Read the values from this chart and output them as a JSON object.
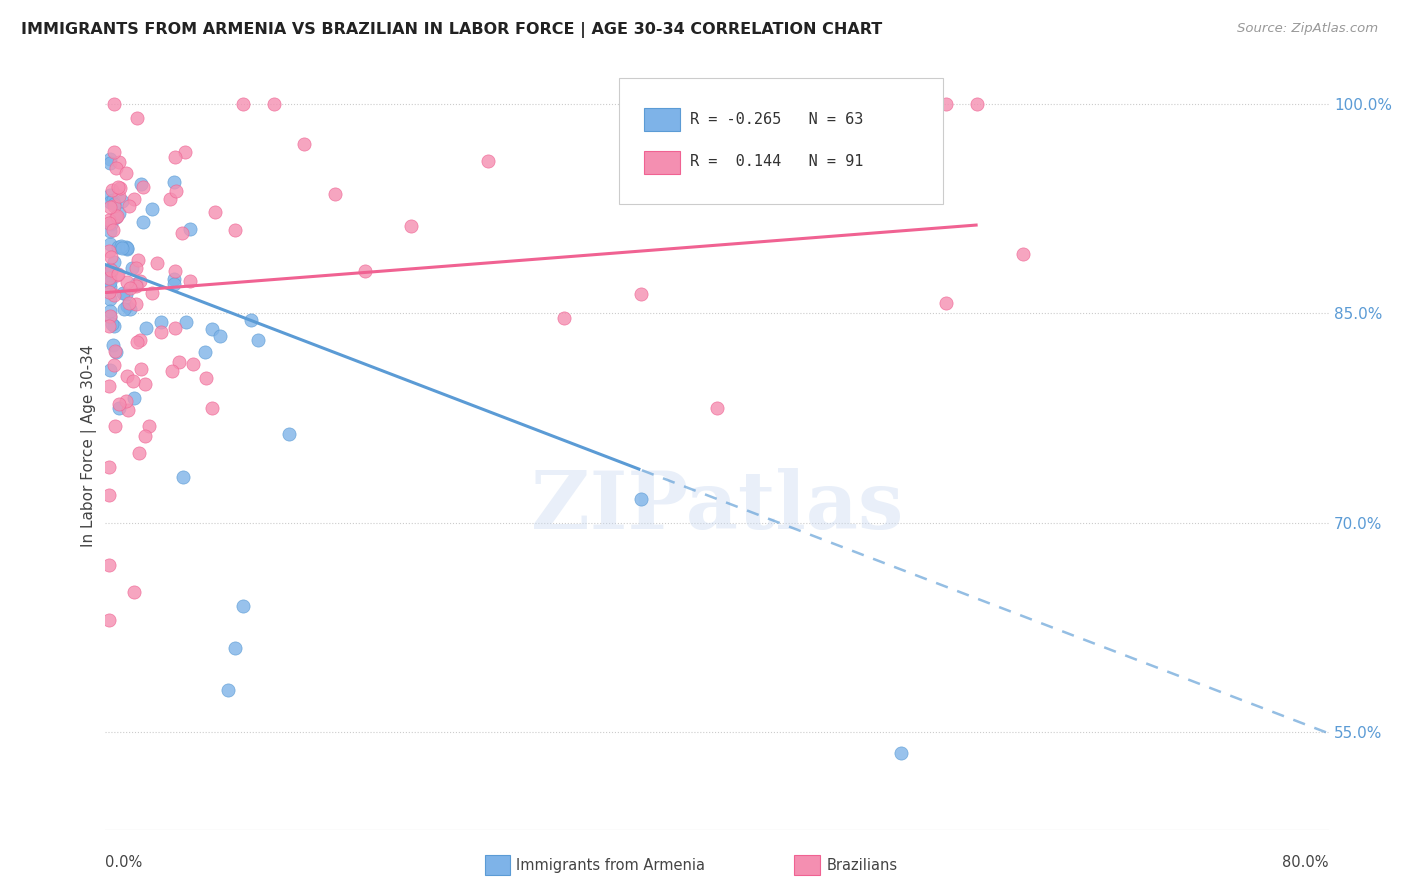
{
  "title": "IMMIGRANTS FROM ARMENIA VS BRAZILIAN IN LABOR FORCE | AGE 30-34 CORRELATION CHART",
  "source": "Source: ZipAtlas.com",
  "ylabel": "In Labor Force | Age 30-34",
  "ytick_vals": [
    55.0,
    70.0,
    85.0,
    100.0
  ],
  "xlim": [
    0,
    80
  ],
  "ylim": [
    48,
    103
  ],
  "color_armenia": "#7EB3E8",
  "color_armenian_edge": "#5B9BD5",
  "color_brazilian": "#F48FB1",
  "color_brazilian_edge": "#F06292",
  "color_line_armenia": "#5B9BD5",
  "color_line_brazilian": "#F06292",
  "watermark": "ZIPatlas",
  "arm_intercept": 88.5,
  "arm_slope": -0.42,
  "braz_intercept": 86.5,
  "braz_slope": 0.085,
  "arm_solid_end_x": 35,
  "braz_solid_end_x": 57
}
